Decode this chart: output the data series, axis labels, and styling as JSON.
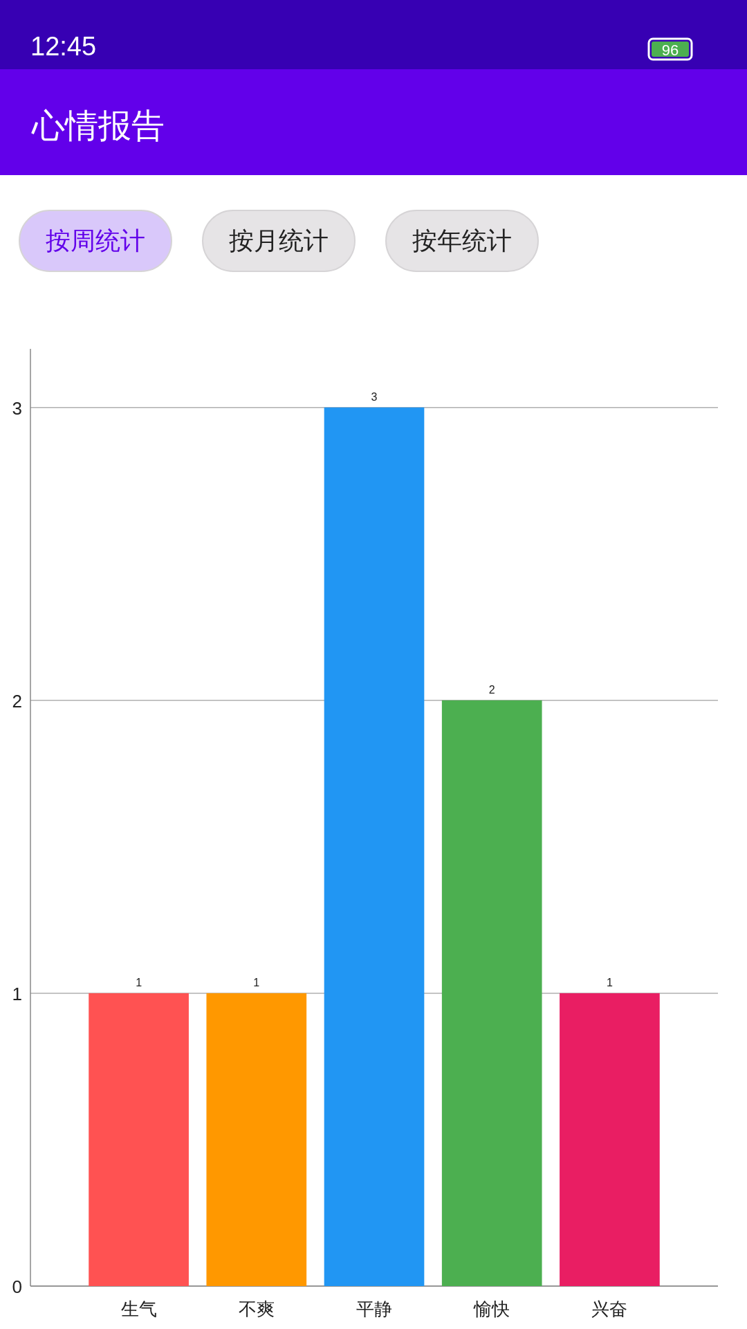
{
  "chart_data": {
    "type": "bar",
    "title": "心情报告",
    "annotations": [
      "12:45",
      "96",
      "按周统计",
      "按月统计",
      "按年统计"
    ],
    "categories": [
      "生气",
      "不爽",
      "平静",
      "愉快",
      "兴奋"
    ],
    "values": [
      1,
      1,
      3,
      2,
      1
    ],
    "colors": [
      "#ff5252",
      "#ff9800",
      "#2196f3",
      "#4caf50",
      "#e91e63"
    ],
    "ylim": [
      0,
      3.2
    ],
    "yticks": [
      0,
      1,
      2,
      3
    ],
    "grid": "y",
    "data_labels": true
  }
}
